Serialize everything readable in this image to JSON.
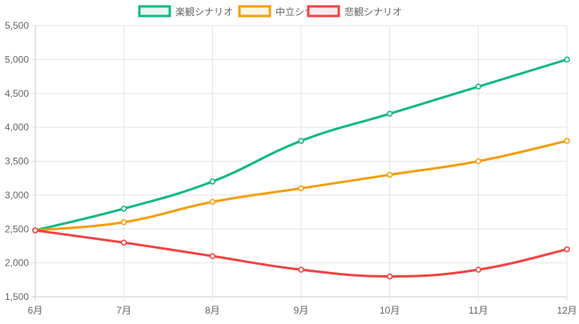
{
  "chart_data": {
    "type": "line",
    "title": "",
    "xlabel": "",
    "ylabel": "",
    "categories": [
      "6月",
      "7月",
      "8月",
      "9月",
      "10月",
      "11月",
      "12月"
    ],
    "ylim": [
      1500,
      5500
    ],
    "yticks": [
      1500,
      2000,
      2500,
      3000,
      3500,
      4000,
      4500,
      5000,
      5500
    ],
    "ytick_labels": [
      "1,500",
      "2,000",
      "2,500",
      "3,000",
      "3,500",
      "4,000",
      "4,500",
      "5,000",
      "5,500"
    ],
    "grid": true,
    "legend_position": "top",
    "series": [
      {
        "name": "楽観シナリオ",
        "color": "#10b981",
        "fill": "#e7f8f2",
        "values": [
          2480,
          2800,
          3200,
          3800,
          4200,
          4600,
          5000
        ]
      },
      {
        "name": "中立シナリオ",
        "color": "#f59e0b",
        "fill": "#fef5e7",
        "values": [
          2480,
          2600,
          2900,
          3100,
          3300,
          3500,
          3800
        ]
      },
      {
        "name": "悲観シナリオ",
        "color": "#ef4444",
        "fill": "#fdecec",
        "values": [
          2480,
          2300,
          2100,
          1900,
          1800,
          1900,
          2200
        ]
      }
    ]
  }
}
